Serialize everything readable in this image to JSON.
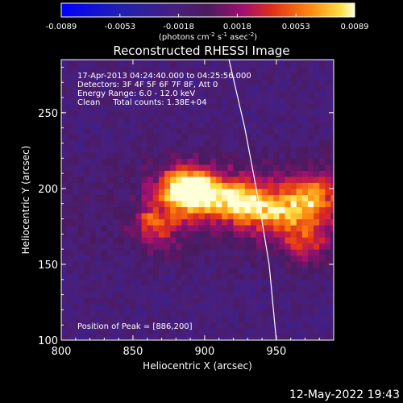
{
  "colorbar": {
    "ticks": [
      "-0.0089",
      "-0.0053",
      "-0.0018",
      "0.0018",
      "0.0053",
      "0.0089"
    ],
    "units_main": "(photons cm",
    "units_exp1": "-2",
    "units_mid": " s",
    "units_exp2": "-1",
    "units_end": " asec",
    "units_exp3": "-2",
    "units_close": ")"
  },
  "annotations": {
    "time_range": "17-Apr-2013 04:24:40.000 to 04:25:56.000",
    "detectors": "Detectors: 3F 4F 5F 6F 7F 8F, Att 0",
    "energy": "Energy Range: 6.0 - 12.0 keV",
    "clean": "Clean     Total counts: 1.38E+04",
    "peak": "Position of Peak = [886,200]"
  },
  "footer_timestamp": "12-May-2022 19:43",
  "chart_data": {
    "type": "heatmap",
    "title": "Reconstructed RHESSI Image",
    "xlabel": "Heliocentric X (arcsec)",
    "ylabel": "Heliocentric Y (arcsec)",
    "xlim": [
      800,
      990
    ],
    "ylim": [
      100,
      285
    ],
    "xticks": [
      "800",
      "850",
      "900",
      "950"
    ],
    "yticks": [
      "100",
      "150",
      "200",
      "250"
    ],
    "xtick_values": [
      800,
      850,
      900,
      950
    ],
    "ytick_values": [
      100,
      150,
      200,
      250
    ],
    "zlim": [
      -0.0089,
      0.0089
    ],
    "colormap": "rhessi-heat",
    "sources": [
      {
        "x": 886,
        "y": 200,
        "value": 0.0089
      },
      {
        "x": 930,
        "y": 190,
        "value": 0.0062
      },
      {
        "x": 905,
        "y": 195,
        "value": 0.005
      },
      {
        "x": 975,
        "y": 195,
        "value": 0.0045
      },
      {
        "x": 955,
        "y": 185,
        "value": 0.004
      },
      {
        "x": 970,
        "y": 165,
        "value": 0.003
      },
      {
        "x": 865,
        "y": 175,
        "value": 0.0025
      }
    ],
    "limb_curve": [
      {
        "x": 917,
        "y": 285
      },
      {
        "x": 928,
        "y": 240
      },
      {
        "x": 938,
        "y": 190
      },
      {
        "x": 945,
        "y": 150
      },
      {
        "x": 950,
        "y": 100
      }
    ]
  }
}
